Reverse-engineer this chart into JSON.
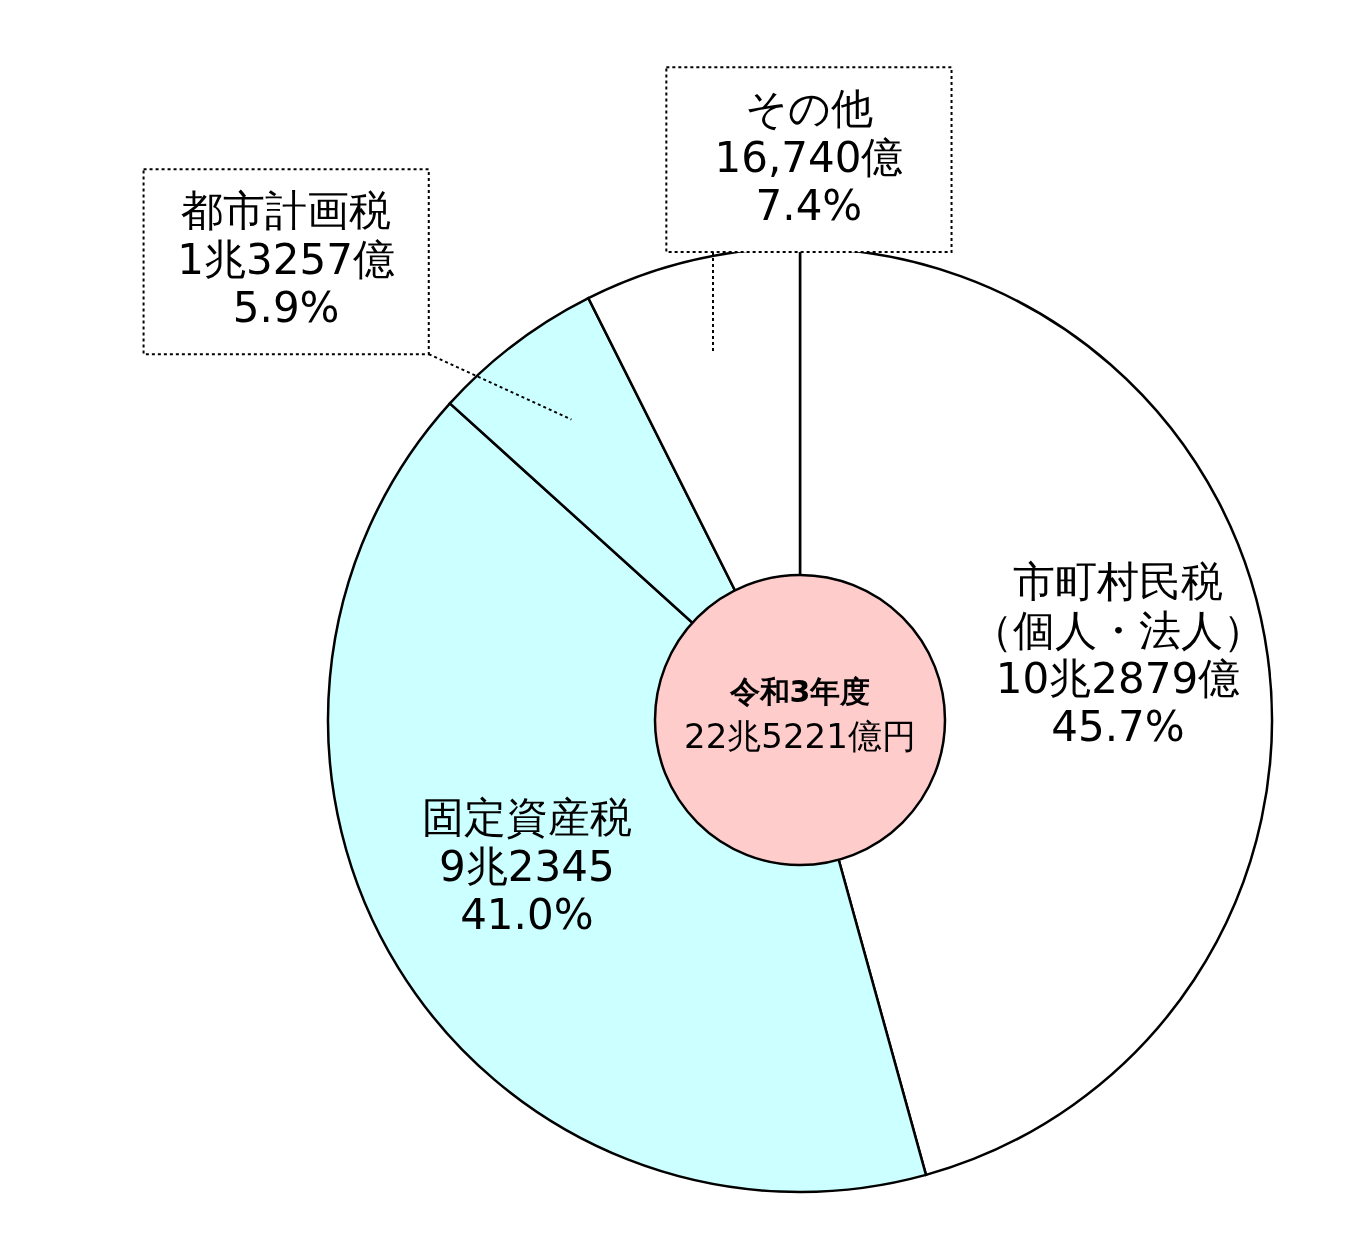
{
  "chart_data": {
    "type": "donut",
    "title": "令和3年度",
    "subtitle": "22兆5221億円",
    "categories": [
      "市町村民税（個人・法人）",
      "固定資産税",
      "都市計画税",
      "その他"
    ],
    "values": [
      45.7,
      41.0,
      5.9,
      7.4
    ],
    "value_labels": [
      "10兆2879億\n45.7%",
      "9兆2345\n41.0%",
      "1兆3257億\n5.9%",
      "16,740億\n7.4%"
    ],
    "colors": [
      "#ffffff",
      "#ccffff",
      "#ccffff",
      "#ffffff"
    ]
  }
}
